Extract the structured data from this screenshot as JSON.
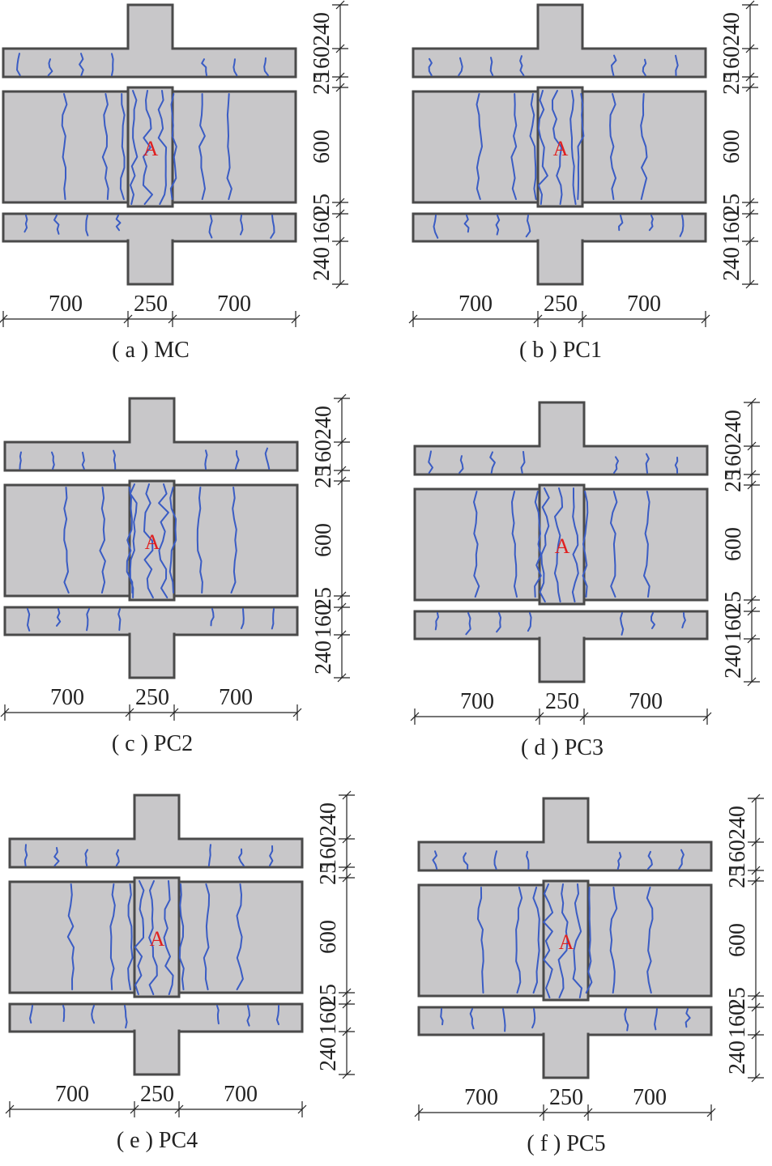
{
  "dimensions": {
    "horizontal": [
      "700",
      "250",
      "700"
    ],
    "vertical": [
      "240",
      "160",
      "25",
      "600",
      "25",
      "160",
      "240"
    ]
  },
  "marker_label": "A",
  "panels": [
    {
      "id": "a",
      "caption": "( a ) MC"
    },
    {
      "id": "b",
      "caption": "( b ) PC1"
    },
    {
      "id": "c",
      "caption": "( c ) PC2"
    },
    {
      "id": "d",
      "caption": "( d ) PC3"
    },
    {
      "id": "e",
      "caption": "( e ) PC4"
    },
    {
      "id": "f",
      "caption": "( f ) PC5"
    }
  ],
  "colors": {
    "concrete": "#c8c7c9",
    "outline": "#4a4a4a",
    "crack": "#3a5cc4",
    "marker": "#e02020"
  }
}
